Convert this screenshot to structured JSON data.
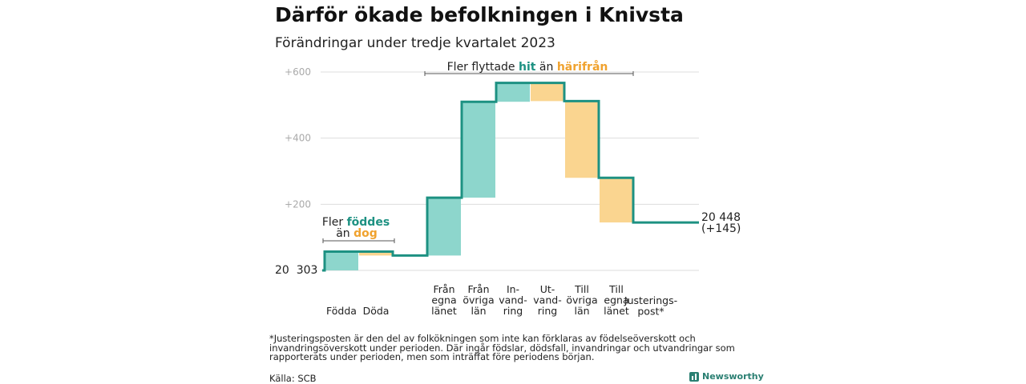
{
  "title": "Därför ökade befolkningen i Knivsta",
  "subtitle": "Förändringar under tredje kvartalet 2023",
  "chart_data": {
    "type": "waterfall",
    "start_value": 20303,
    "start_label": "20  303",
    "end_label_1": "20 448",
    "end_label_2": "(+145)",
    "ylim": [
      0,
      600
    ],
    "yticks": [
      {
        "value": 200,
        "label": "+200"
      },
      {
        "value": 400,
        "label": "+400"
      },
      {
        "value": 600,
        "label": "+600"
      }
    ],
    "grid": true,
    "steps": [
      {
        "key": "fodda",
        "label_lines": [
          "Födda"
        ],
        "change": 57,
        "kind": "in"
      },
      {
        "key": "doda",
        "label_lines": [
          "Döda"
        ],
        "change": -12,
        "kind": "out"
      },
      {
        "key": "fran_egna_lanet",
        "label_lines": [
          "Från",
          "egna",
          "länet"
        ],
        "change": 175,
        "kind": "in"
      },
      {
        "key": "fran_ovriga_lan",
        "label_lines": [
          "Från",
          "övriga",
          "län"
        ],
        "change": 290,
        "kind": "in"
      },
      {
        "key": "invandring",
        "label_lines": [
          "In-",
          "vand-",
          "ring"
        ],
        "change": 57,
        "kind": "in"
      },
      {
        "key": "utvandring",
        "label_lines": [
          "Ut-",
          "vand-",
          "ring"
        ],
        "change": -55,
        "kind": "out"
      },
      {
        "key": "till_ovriga_lan",
        "label_lines": [
          "Till",
          "övriga",
          "län"
        ],
        "change": -232,
        "kind": "out"
      },
      {
        "key": "till_egna_lanet",
        "label_lines": [
          "Till",
          "egna",
          "länet"
        ],
        "change": -135,
        "kind": "out"
      },
      {
        "key": "justeringspost",
        "label_lines": [
          "Justerings-",
          "post*"
        ],
        "change": 0,
        "kind": "adjust"
      }
    ],
    "annotations": {
      "births": {
        "line1": "Fler ",
        "line1_em": "föddes",
        "line2": "än ",
        "line2_em": "dog"
      },
      "migration": {
        "pre": "Fler flyttade ",
        "em1": "hit",
        "mid": " än ",
        "em2": "härifrån"
      }
    },
    "colors": {
      "in": "#8dd6cc",
      "out": "#fad590",
      "line": "#1d9182",
      "grid": "#dddddd",
      "accent_in": "#1d9182",
      "accent_out": "#f0a22e"
    }
  },
  "footnote": "*Justeringsposten är den del av folkökningen som inte kan förklaras av födelseöverskott och invandringsöverskott under perioden. Där ingår födslar, dödsfall, invandringar och utvandringar som rapporterats under perioden, men som inträffat före periodens början.",
  "source": "Källa: SCB",
  "brand": "Newsworthy"
}
